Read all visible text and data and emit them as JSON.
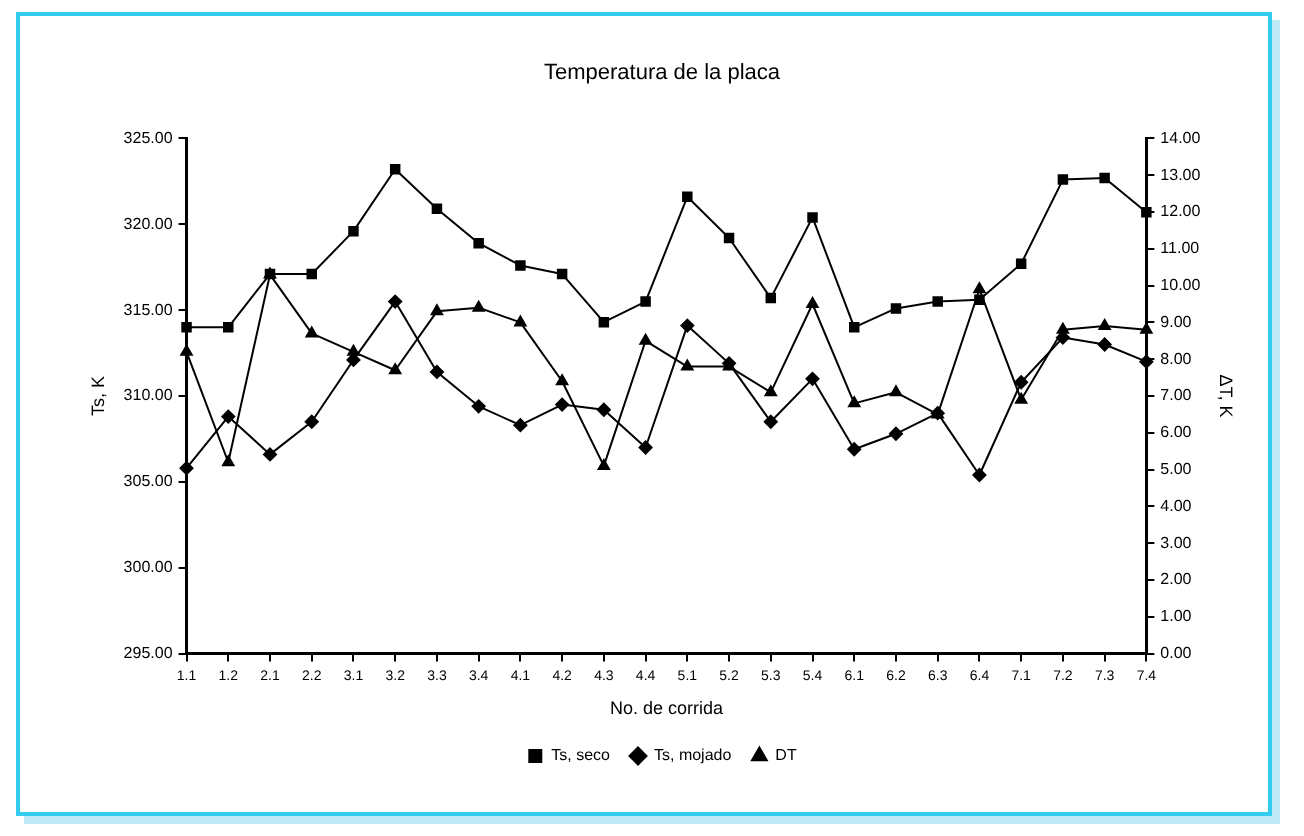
{
  "chart_data": {
    "type": "line",
    "title": "Temperatura de la placa",
    "xlabel": "No. de corrida",
    "ylabel": "Ts, K",
    "y2label": "ΔT, K",
    "categories": [
      "1.1",
      "1.2",
      "2.1",
      "2.2",
      "3.1",
      "3.2",
      "3.3",
      "3.4",
      "4.1",
      "4.2",
      "4.3",
      "4.4",
      "5.1",
      "5.2",
      "5.3",
      "5.4",
      "6.1",
      "6.2",
      "6.3",
      "6.4",
      "7.1",
      "7.2",
      "7.3",
      "7.4"
    ],
    "series": [
      {
        "name": "Ts, seco",
        "color": "#000000",
        "marker": "square",
        "values": [
          314.0,
          314.0,
          317.1,
          317.1,
          319.6,
          323.2,
          320.9,
          318.9,
          317.6,
          317.1,
          314.3,
          315.5,
          321.6,
          319.2,
          315.7,
          320.4,
          314.0,
          315.1,
          315.5,
          315.6,
          317.7,
          322.6,
          322.7,
          320.7
        ]
      },
      {
        "name": "Ts, mojado",
        "color": "#000000",
        "marker": "diamond",
        "values": [
          305.8,
          308.8,
          306.6,
          308.5,
          312.1,
          315.5,
          311.4,
          309.4,
          308.3,
          309.5,
          309.2,
          307.0,
          314.1,
          311.9,
          308.5,
          311.0,
          306.9,
          307.8,
          309.0,
          305.4,
          310.8,
          313.4,
          313.0,
          312.0
        ]
      },
      {
        "name": "DT",
        "color": "#000000",
        "marker": "triangle",
        "axis": "y2",
        "values": [
          8.2,
          5.2,
          10.3,
          8.7,
          8.2,
          7.7,
          9.3,
          9.4,
          9.0,
          7.4,
          5.1,
          8.5,
          7.8,
          7.8,
          7.1,
          9.5,
          6.8,
          7.1,
          6.5,
          9.9,
          6.9,
          8.8,
          8.9,
          8.8
        ]
      }
    ],
    "ylim": [
      295,
      325
    ],
    "yticks": [
      {
        "value": 295,
        "label": "295.00"
      },
      {
        "value": 300,
        "label": "300.00"
      },
      {
        "value": 305,
        "label": "305.00"
      },
      {
        "value": 310,
        "label": "310.00"
      },
      {
        "value": 315,
        "label": "315.00"
      },
      {
        "value": 320,
        "label": "320.00"
      },
      {
        "value": 325,
        "label": "325.00"
      }
    ],
    "y2lim": [
      0,
      14
    ],
    "y2ticks": [
      {
        "value": 0,
        "label": "0.00"
      },
      {
        "value": 1,
        "label": "1.00"
      },
      {
        "value": 2,
        "label": "2.00"
      },
      {
        "value": 3,
        "label": "3.00"
      },
      {
        "value": 4,
        "label": "4.00"
      },
      {
        "value": 5,
        "label": "5.00"
      },
      {
        "value": 6,
        "label": "6.00"
      },
      {
        "value": 7,
        "label": "7.00"
      },
      {
        "value": 8,
        "label": "8.00"
      },
      {
        "value": 9,
        "label": "9.00"
      },
      {
        "value": 10,
        "label": "10.00"
      },
      {
        "value": 11,
        "label": "11.00"
      },
      {
        "value": 12,
        "label": "12.00"
      },
      {
        "value": 13,
        "label": "13.00"
      },
      {
        "value": 14,
        "label": "14.00"
      }
    ],
    "grid": false,
    "legend": "bottom"
  }
}
